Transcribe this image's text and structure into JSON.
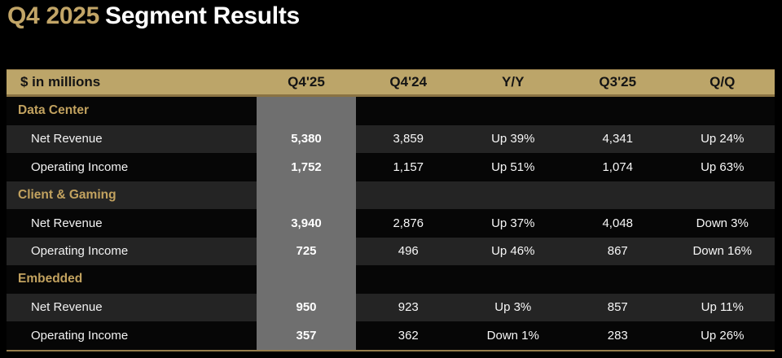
{
  "title": {
    "highlight": "Q4 2025",
    "rest": "Segment Results"
  },
  "table": {
    "columns": [
      "$ in millions",
      "Q4'25",
      "Q4'24",
      "Y/Y",
      "Q3'25",
      "Q/Q"
    ],
    "highlight_column": "Q4'25",
    "segments": [
      {
        "name": "Data Center",
        "rows": [
          {
            "label": "Net Revenue",
            "q4_25": "5,380",
            "q4_24": "3,859",
            "yoy": "Up 39%",
            "q3_25": "4,341",
            "qoq": "Up 24%"
          },
          {
            "label": "Operating Income",
            "q4_25": "1,752",
            "q4_24": "1,157",
            "yoy": "Up 51%",
            "q3_25": "1,074",
            "qoq": "Up 63%"
          }
        ]
      },
      {
        "name": "Client & Gaming",
        "rows": [
          {
            "label": "Net Revenue",
            "q4_25": "3,940",
            "q4_24": "2,876",
            "yoy": "Up 37%",
            "q3_25": "4,048",
            "qoq": "Down 3%"
          },
          {
            "label": "Operating Income",
            "q4_25": "725",
            "q4_24": "496",
            "yoy": "Up 46%",
            "q3_25": "867",
            "qoq": "Down 16%"
          }
        ]
      },
      {
        "name": "Embedded",
        "rows": [
          {
            "label": "Net Revenue",
            "q4_25": "950",
            "q4_24": "923",
            "yoy": "Up 3%",
            "q3_25": "857",
            "qoq": "Up 11%"
          },
          {
            "label": "Operating Income",
            "q4_25": "357",
            "q4_24": "362",
            "yoy": "Down 1%",
            "q3_25": "283",
            "qoq": "Up 26%"
          }
        ]
      }
    ]
  },
  "colors": {
    "background": "#000000",
    "gold_header_bg": "#bca569",
    "gold_accent_text": "#c2a25f",
    "highlight_column_bg": "#6f6f6f",
    "row_alt_bg": "#242424",
    "row_dark_bg": "#060606",
    "header_text": "#141414",
    "value_text": "#ffffff",
    "bottom_border": "#957c4b"
  }
}
